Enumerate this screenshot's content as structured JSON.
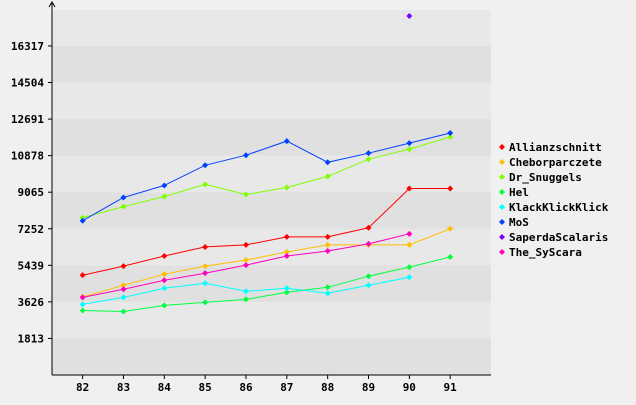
{
  "chart_data": {
    "type": "line",
    "title": "",
    "xlabel": "",
    "ylabel": "",
    "x": [
      82,
      83,
      84,
      85,
      86,
      87,
      88,
      89,
      90,
      91
    ],
    "x_tick_labels": [
      "82",
      "83",
      "84",
      "85",
      "86",
      "87",
      "88",
      "89",
      "90",
      "91"
    ],
    "y_tick_values": [
      1813,
      3626,
      5439,
      7252,
      9065,
      10878,
      12691,
      14504,
      16317
    ],
    "y_tick_labels": [
      "1813",
      "3626",
      "5439",
      "7252",
      "9065",
      "10878",
      "12691",
      "14504",
      "16317"
    ],
    "ylim": [
      0,
      18100
    ],
    "xlim": [
      81.25,
      92
    ],
    "grid": true,
    "legend_position": "right",
    "background_band_colors": [
      "#e0e0e0",
      "#e8e8e8"
    ],
    "axis_color": "#000000",
    "series": [
      {
        "name": "Allianzschnitt",
        "color": "#ff0000",
        "values": [
          4950,
          5400,
          5900,
          6350,
          6450,
          6850,
          6850,
          7300,
          9250,
          9250
        ]
      },
      {
        "name": "Cheborparczete",
        "color": "#ffbf00",
        "values": [
          3880,
          4450,
          5000,
          5400,
          5700,
          6100,
          6450,
          6450,
          6450,
          7250
        ]
      },
      {
        "name": "Dr_Snuggels",
        "color": "#80ff00",
        "values": [
          7800,
          8350,
          8850,
          9450,
          8950,
          9300,
          9850,
          10700,
          11200,
          11800
        ]
      },
      {
        "name": "Hel",
        "color": "#00ff40",
        "values": [
          3200,
          3150,
          3450,
          3600,
          3750,
          4100,
          4350,
          4900,
          5350,
          5850
        ]
      },
      {
        "name": "KlackKlickKlick",
        "color": "#00ffff",
        "values": [
          3500,
          3850,
          4300,
          4550,
          4150,
          4300,
          4050,
          4450,
          4850,
          null
        ]
      },
      {
        "name": "MoS",
        "color": "#0040ff",
        "values": [
          7650,
          8800,
          9400,
          10400,
          10900,
          11600,
          10550,
          11000,
          11500,
          12000
        ]
      },
      {
        "name": "SaperdaScalaris",
        "color": "#8000ff",
        "values": [
          null,
          null,
          null,
          null,
          null,
          null,
          null,
          null,
          17800,
          null
        ]
      },
      {
        "name": "The_SyScara",
        "color": "#ff00bf",
        "values": [
          3850,
          4250,
          4700,
          5050,
          5450,
          5900,
          6150,
          6500,
          7000,
          null
        ]
      }
    ]
  }
}
